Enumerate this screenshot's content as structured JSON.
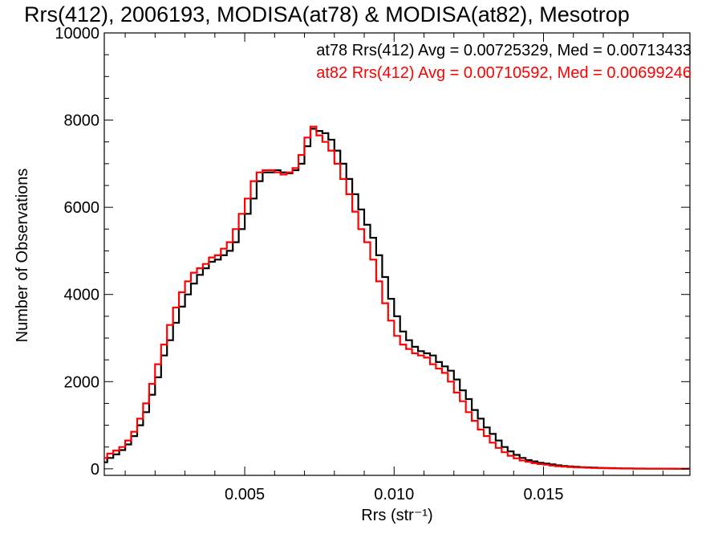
{
  "chart_data": {
    "type": "line",
    "title": "Rrs(412), 2006193, MODISA(at78) & MODISA(at82), Mesotrop",
    "xlabel": "Rrs (str⁻¹)",
    "ylabel": "Number of Observations",
    "xlim": [
      0.0003,
      0.0199
    ],
    "ylim": [
      -150,
      10000
    ],
    "xticks": [
      {
        "value": 0.005,
        "label": "0.005"
      },
      {
        "value": 0.01,
        "label": "0.010"
      },
      {
        "value": 0.015,
        "label": "0.015"
      }
    ],
    "yticks": [
      {
        "value": 0,
        "label": "0"
      },
      {
        "value": 2000,
        "label": "2000"
      },
      {
        "value": 4000,
        "label": "4000"
      },
      {
        "value": 6000,
        "label": "6000"
      },
      {
        "value": 8000,
        "label": "8000"
      },
      {
        "value": 10000,
        "label": "10000"
      }
    ],
    "grid": false,
    "legend_placement": "top-right",
    "series": [
      {
        "name": "at78",
        "color": "#000000",
        "legend_text": "at78 Rrs(412) Avg = 0.00725329, Med = 0.00713433",
        "x": [
          0.0003,
          0.0005,
          0.0007,
          0.0009,
          0.0011,
          0.0013,
          0.0015,
          0.0017,
          0.0019,
          0.0021,
          0.0023,
          0.0025,
          0.0027,
          0.0029,
          0.0031,
          0.0033,
          0.0035,
          0.0037,
          0.0039,
          0.0041,
          0.0043,
          0.0045,
          0.0047,
          0.0049,
          0.0051,
          0.0053,
          0.0055,
          0.0057,
          0.0059,
          0.0061,
          0.0063,
          0.0065,
          0.0067,
          0.0069,
          0.0071,
          0.0073,
          0.0075,
          0.0077,
          0.0079,
          0.0081,
          0.0083,
          0.0085,
          0.0087,
          0.0089,
          0.0091,
          0.0093,
          0.0095,
          0.0097,
          0.0099,
          0.0101,
          0.0103,
          0.0105,
          0.0107,
          0.0109,
          0.0111,
          0.0113,
          0.0115,
          0.0117,
          0.0119,
          0.0121,
          0.0123,
          0.0125,
          0.0127,
          0.0129,
          0.0131,
          0.0133,
          0.0135,
          0.0137,
          0.0139,
          0.0141,
          0.0143,
          0.0145,
          0.0147,
          0.0149,
          0.0151,
          0.0153,
          0.0155,
          0.0157,
          0.0159,
          0.0161,
          0.0163,
          0.0165,
          0.0167,
          0.0169,
          0.0171,
          0.0173,
          0.0175,
          0.0177,
          0.0179,
          0.0181,
          0.0183,
          0.0185,
          0.0187,
          0.0189,
          0.0191,
          0.0193,
          0.0195,
          0.0197,
          0.0199
        ],
        "y": [
          150,
          250,
          330,
          430,
          560,
          750,
          1000,
          1300,
          1700,
          2100,
          2600,
          2950,
          3350,
          3720,
          4000,
          4250,
          4450,
          4600,
          4750,
          4800,
          4900,
          5000,
          5200,
          5500,
          5850,
          6200,
          6600,
          6800,
          6800,
          6850,
          6800,
          6780,
          6850,
          7000,
          7400,
          7800,
          7750,
          7700,
          7550,
          7300,
          7000,
          6650,
          6300,
          5950,
          5600,
          5300,
          4900,
          4400,
          3900,
          3500,
          3150,
          2950,
          2800,
          2700,
          2650,
          2600,
          2450,
          2350,
          2250,
          2050,
          1800,
          1600,
          1350,
          1150,
          950,
          800,
          650,
          500,
          400,
          320,
          250,
          200,
          170,
          140,
          120,
          100,
          80,
          65,
          55,
          45,
          38,
          32,
          27,
          22,
          18,
          15,
          12,
          10,
          8,
          7,
          6,
          5,
          4,
          3,
          2,
          2,
          1,
          1,
          1
        ]
      },
      {
        "name": "at82",
        "color": "#ff0000",
        "legend_text": "at82 Rrs(412) Avg = 0.00710592, Med = 0.00699246",
        "x": [
          0.0003,
          0.0005,
          0.0007,
          0.0009,
          0.0011,
          0.0013,
          0.0015,
          0.0017,
          0.0019,
          0.0021,
          0.0023,
          0.0025,
          0.0027,
          0.0029,
          0.0031,
          0.0033,
          0.0035,
          0.0037,
          0.0039,
          0.0041,
          0.0043,
          0.0045,
          0.0047,
          0.0049,
          0.0051,
          0.0053,
          0.0055,
          0.0057,
          0.0059,
          0.0061,
          0.0063,
          0.0065,
          0.0067,
          0.0069,
          0.0071,
          0.0073,
          0.0075,
          0.0077,
          0.0079,
          0.0081,
          0.0083,
          0.0085,
          0.0087,
          0.0089,
          0.0091,
          0.0093,
          0.0095,
          0.0097,
          0.0099,
          0.0101,
          0.0103,
          0.0105,
          0.0107,
          0.0109,
          0.0111,
          0.0113,
          0.0115,
          0.0117,
          0.0119,
          0.0121,
          0.0123,
          0.0125,
          0.0127,
          0.0129,
          0.0131,
          0.0133,
          0.0135,
          0.0137,
          0.0139,
          0.0141,
          0.0143,
          0.0145,
          0.0147,
          0.0149,
          0.0151,
          0.0153,
          0.0155,
          0.0157,
          0.0159,
          0.0161,
          0.0163,
          0.0165,
          0.0167,
          0.0169,
          0.0171,
          0.0173,
          0.0175,
          0.0177,
          0.0179,
          0.0181,
          0.0183,
          0.0185,
          0.0187,
          0.0189,
          0.0191,
          0.0193,
          0.0195,
          0.0197,
          0.0199
        ],
        "y": [
          250,
          350,
          420,
          500,
          650,
          850,
          1150,
          1500,
          1950,
          2400,
          2850,
          3300,
          3700,
          4050,
          4300,
          4500,
          4600,
          4700,
          4850,
          4900,
          5050,
          5200,
          5500,
          5850,
          6200,
          6600,
          6800,
          6850,
          6850,
          6800,
          6750,
          6800,
          6900,
          7200,
          7600,
          7850,
          7650,
          7500,
          7300,
          7000,
          6650,
          6300,
          5900,
          5500,
          5200,
          4800,
          4300,
          3800,
          3400,
          3050,
          2850,
          2750,
          2650,
          2600,
          2550,
          2400,
          2300,
          2200,
          2000,
          1750,
          1550,
          1300,
          1100,
          900,
          750,
          600,
          480,
          380,
          300,
          240,
          190,
          160,
          130,
          110,
          95,
          75,
          60,
          50,
          42,
          35,
          30,
          25,
          20,
          16,
          14,
          11,
          9,
          7,
          6,
          5,
          4,
          3,
          3,
          2,
          2,
          1,
          1,
          1,
          0
        ]
      }
    ]
  }
}
